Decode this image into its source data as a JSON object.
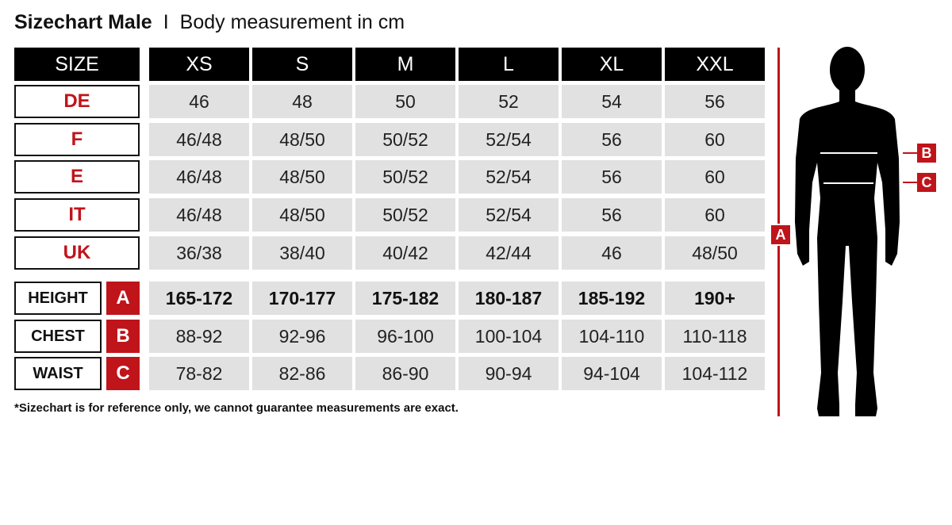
{
  "title": {
    "main": "Sizechart Male",
    "separator": "I",
    "subtitle": "Body measurement in cm"
  },
  "header": {
    "label": "SIZE",
    "sizes": [
      "XS",
      "S",
      "M",
      "L",
      "XL",
      "XXL"
    ]
  },
  "conversion_rows": [
    {
      "label": "DE",
      "values": [
        "46",
        "48",
        "50",
        "52",
        "54",
        "56"
      ]
    },
    {
      "label": "F",
      "values": [
        "46/48",
        "48/50",
        "50/52",
        "52/54",
        "56",
        "60"
      ]
    },
    {
      "label": "E",
      "values": [
        "46/48",
        "48/50",
        "50/52",
        "52/54",
        "56",
        "60"
      ]
    },
    {
      "label": "IT",
      "values": [
        "46/48",
        "48/50",
        "50/52",
        "52/54",
        "56",
        "60"
      ]
    },
    {
      "label": "UK",
      "values": [
        "36/38",
        "38/40",
        "40/42",
        "42/44",
        "46",
        "48/50"
      ]
    }
  ],
  "measurement_rows": [
    {
      "label": "HEIGHT",
      "letter": "A",
      "values": [
        "165-172",
        "170-177",
        "175-182",
        "180-187",
        "185-192",
        "190+"
      ]
    },
    {
      "label": "CHEST",
      "letter": "B",
      "values": [
        "88-92",
        "92-96",
        "96-100",
        "100-104",
        "104-110",
        "110-118"
      ]
    },
    {
      "label": "WAIST",
      "letter": "C",
      "values": [
        "78-82",
        "82-86",
        "86-90",
        "90-94",
        "94-104",
        "104-112"
      ]
    }
  ],
  "footnote": "*Sizechart is for reference only, we cannot guarantee measurements are exact.",
  "figure": {
    "height_marker": "A",
    "chest_marker": "B",
    "waist_marker": "C"
  },
  "colors": {
    "accent": "#c0141b",
    "header_bg": "#000000",
    "cell_bg": "#e1e1e1"
  }
}
